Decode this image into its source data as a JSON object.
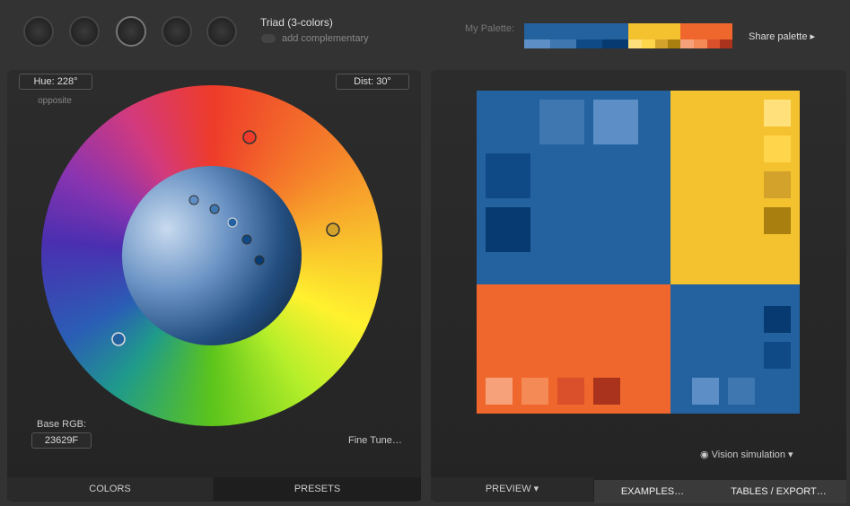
{
  "header": {
    "scheme": "Triad (3-colors)",
    "complementary": "add complementary",
    "palette_label": "My Palette:",
    "share": "Share palette"
  },
  "wheel": {
    "hue": "Hue: 228°",
    "hue_note": "opposite",
    "dist": "Dist: 30°",
    "base_label": "Base RGB:",
    "base_value": "23629F",
    "fine_tune": "Fine Tune…"
  },
  "left_tabs": [
    "COLORS",
    "PRESETS"
  ],
  "preview": {
    "vision": "Vision simulation"
  },
  "right_tabs": [
    "PREVIEW",
    "EXAMPLES…",
    "TABLES / EXPORT…"
  ]
}
